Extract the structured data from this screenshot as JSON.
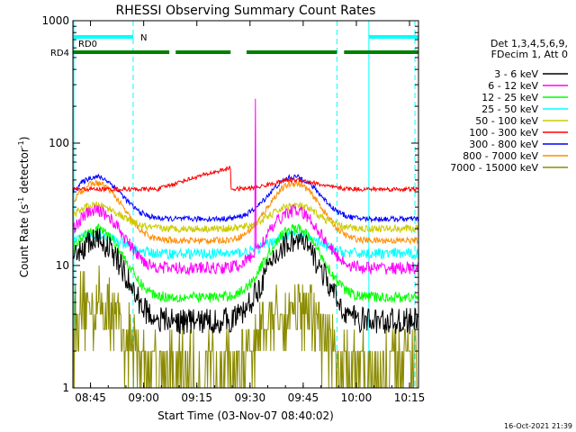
{
  "chart_data": {
    "type": "line",
    "title": "RHESSI Observing Summary Count Rates",
    "xlabel": "Start Time (03-Nov-07 08:40:02)",
    "ylabel_main": "Count Rate (s",
    "ylabel_sup1": "-1",
    "ylabel_mid": " detector",
    "ylabel_sup2": "-1",
    "ylabel_end": ")",
    "yscale": "log",
    "ylim": [
      1,
      1000
    ],
    "xlim_minutes": [
      0,
      97.5
    ],
    "grid": false,
    "legend_position": "right",
    "x_ticks": [
      {
        "label": "08:45",
        "minute": 4.97
      },
      {
        "label": "09:00",
        "minute": 19.97
      },
      {
        "label": "09:15",
        "minute": 34.97
      },
      {
        "label": "09:30",
        "minute": 49.97
      },
      {
        "label": "09:45",
        "minute": 64.97
      },
      {
        "label": "10:00",
        "minute": 79.97
      },
      {
        "label": "10:15",
        "minute": 94.97
      }
    ],
    "y_ticks": [
      {
        "label": "1",
        "value": 1
      },
      {
        "label": "10",
        "value": 10
      },
      {
        "label": "100",
        "value": 100
      },
      {
        "label": "1000",
        "value": 1000
      }
    ],
    "legend_header": [
      "Det 1,3,4,5,6,9,",
      "FDecim 1, Att 0"
    ],
    "series": [
      {
        "name": "3 - 6 keV",
        "color": "#000000",
        "base": 3.5,
        "peak": 16,
        "lowbase": 3.4,
        "noise": 0.25
      },
      {
        "name": "6 - 12 keV",
        "color": "#ff00ff",
        "base": 9.5,
        "peak": 28,
        "lowbase": 9.5,
        "noise": 0.12
      },
      {
        "name": "12 - 25 keV",
        "color": "#00ff00",
        "base": 5.5,
        "peak": 20,
        "lowbase": 5.5,
        "noise": 0.1
      },
      {
        "name": "25 - 50 keV",
        "color": "#00ffff",
        "base": 12.5,
        "peak": 18,
        "lowbase": 12.5,
        "noise": 0.1
      },
      {
        "name": "50 - 100 keV",
        "color": "#cccc00",
        "base": 20,
        "peak": 31,
        "lowbase": 20,
        "noise": 0.07
      },
      {
        "name": "100 - 300 keV",
        "color": "#ff0000",
        "base": 42,
        "peak": 42,
        "lowbase": 42,
        "noise": 0.04
      },
      {
        "name": "300 - 800 keV",
        "color": "#0000ff",
        "base": 24,
        "peak": 53,
        "lowbase": 24,
        "noise": 0.05
      },
      {
        "name": "800 - 7000 keV",
        "color": "#ff8c00",
        "base": 16,
        "peak": 47,
        "lowbase": 16,
        "noise": 0.06
      },
      {
        "name": "7000 - 15000 keV",
        "color": "#8b8b00",
        "base": 1.5,
        "peak": 5,
        "lowbase": 1,
        "noise": 0.4
      }
    ],
    "gap_windows": [
      [
        0,
        17.5
      ],
      [
        44.5,
        83.5
      ]
    ],
    "orbit_peaks_minutes": [
      6.5,
      62.5
    ],
    "spike_minute": 51.4,
    "spike_peak": 230,
    "flags": [
      {
        "name": "RD0",
        "color": "#00ffff",
        "segments": [
          [
            0,
            17.0
          ],
          [
            83.5,
            97.5
          ]
        ],
        "marker": "N"
      },
      {
        "name": "RD4",
        "color": "#008000",
        "segments": [
          [
            0,
            27.2
          ],
          [
            29.0,
            44.5
          ],
          [
            49.0,
            74.5
          ],
          [
            76.5,
            97.5
          ]
        ]
      }
    ],
    "saa_lines_minutes": [
      17.0,
      74.5,
      96.5
    ],
    "left_frame_line": true
  },
  "footer": {
    "timestamp": "16-Oct-2021 21:39"
  }
}
